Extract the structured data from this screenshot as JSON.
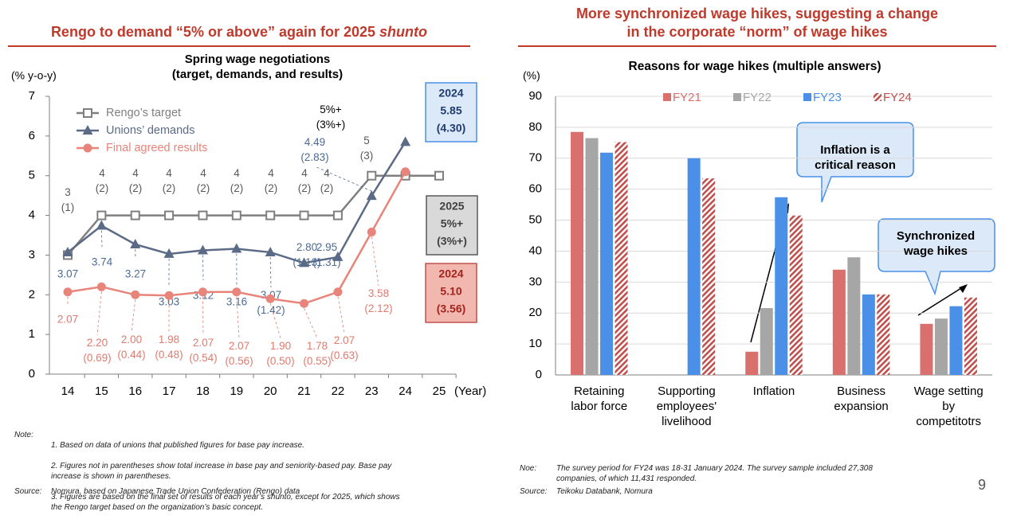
{
  "left_header": {
    "text": "Rengo to demand “5% or above” again for 2025",
    "italic": "shunto"
  },
  "right_header": "More synchronized wage hikes, suggesting a change\nin the corporate “norm” of wage hikes",
  "chart_data": [
    {
      "type": "line",
      "title": "Spring wage negotiations\n(target, demands, and results)",
      "y_label": "(% y-o-y)",
      "x_label": "(Year)",
      "categories": [
        "14",
        "15",
        "16",
        "17",
        "18",
        "19",
        "20",
        "21",
        "22",
        "23",
        "24",
        "25"
      ],
      "ylim": [
        0,
        7
      ],
      "yticks": [
        0,
        1,
        2,
        3,
        4,
        5,
        6,
        7
      ],
      "legend": "top-left",
      "series": [
        {
          "name": "Rengo’s target",
          "color": "#7f7f7f",
          "marker": "square",
          "values": [
            3,
            4,
            4,
            4,
            4,
            4,
            4,
            4,
            4,
            5,
            5,
            5
          ],
          "value_labels": [
            [
              "3",
              "(1)"
            ],
            [
              "4",
              "(2)"
            ],
            [
              "4",
              "(2)"
            ],
            [
              "4",
              "(2)"
            ],
            [
              "4",
              "(2)"
            ],
            [
              "4",
              "(2)"
            ],
            [
              "4",
              "(2)"
            ],
            [
              "4",
              "(2)"
            ],
            [
              "4",
              "(2)"
            ],
            [
              "5",
              "(3)"
            ],
            [
              "5%+",
              "(3%+)"
            ],
            [
              "2025",
              "5%+",
              "(3%+)"
            ]
          ]
        },
        {
          "name": "Unions’ demands",
          "color": "#5b6b86",
          "marker": "triangle",
          "values": [
            3.07,
            3.74,
            3.27,
            3.03,
            3.12,
            3.16,
            3.07,
            2.8,
            2.95,
            4.49,
            5.85,
            null
          ],
          "value_labels": [
            [
              "3.07"
            ],
            [
              "3.74"
            ],
            [
              "3.27"
            ],
            [
              "3.03"
            ],
            [
              "3.12"
            ],
            [
              "3.16"
            ],
            [
              "3.07",
              "(1.42)"
            ],
            [
              "2.80",
              "(1.13)"
            ],
            [
              "2.95",
              "(1.31)"
            ],
            [
              "4.49",
              "(2.83)"
            ],
            [
              "2024",
              "5.85",
              "(4.30)"
            ],
            null
          ]
        },
        {
          "name": "Final agreed results",
          "color": "#e8847a",
          "marker": "circle",
          "values": [
            2.07,
            2.2,
            2.0,
            1.98,
            2.07,
            2.07,
            1.9,
            1.78,
            2.07,
            3.58,
            5.1,
            null
          ],
          "value_labels": [
            [
              "2.07"
            ],
            [
              "2.20",
              "(0.69)"
            ],
            [
              "2.00",
              "(0.44)"
            ],
            [
              "1.98",
              "(0.48)"
            ],
            [
              "2.07",
              "(0.54)"
            ],
            [
              "2.07",
              "(0.56)"
            ],
            [
              "1.90",
              "(0.50)"
            ],
            [
              "1.78",
              "(0.55)"
            ],
            [
              "2.07",
              "(0.63)"
            ],
            [
              "3.58",
              "(2.12)"
            ],
            [
              "2024",
              "5.10",
              "(3.56)"
            ],
            null
          ]
        }
      ]
    },
    {
      "type": "bar",
      "title": "Reasons for wage hikes (multiple answers)",
      "y_label": "(%)",
      "categories": [
        "Retaining\nlabor force",
        "Supporting\nemployees'\nlivelihood",
        "Inflation",
        "Business\nexpansion",
        "Wage setting\nby\ncompetitotrs"
      ],
      "ylim": [
        0,
        90
      ],
      "yticks": [
        0,
        10,
        20,
        30,
        40,
        50,
        60,
        70,
        80,
        90
      ],
      "grid": true,
      "legend": "top",
      "series": [
        {
          "name": "FY21",
          "color": "#d9706e",
          "values": [
            78.5,
            null,
            7.5,
            34,
            16.5
          ]
        },
        {
          "name": "FY22",
          "color": "#a6a6a6",
          "values": [
            76.5,
            null,
            21.6,
            38,
            18.2
          ]
        },
        {
          "name": "FY23",
          "color": "#4a90e8",
          "values": [
            71.8,
            70,
            57.4,
            26,
            22.2
          ]
        },
        {
          "name": "FY24",
          "color": "#c0504d",
          "hatched": true,
          "values": [
            75.2,
            63.5,
            51.5,
            26,
            25
          ]
        }
      ],
      "annotations": [
        "Inflation is a\ncritical reason",
        "Synchronized\nwage hikes"
      ]
    }
  ],
  "left_note": {
    "label": "Note:",
    "lines": [
      "1. Based on data of unions that published figures for base pay increase.",
      "2. Figures not in parentheses show total increase in base pay and seniority-based pay. Base pay\nincrease is shown in parentheses.",
      "3. Figures are based on the final set of results of each year’s shunto, except for 2025, which shows\nthe Rengo target based on the organization’s basic concept."
    ]
  },
  "left_source": {
    "label": "Source:",
    "text": "Nomura, based on Japanese Trade Union Confederation (Rengo) data"
  },
  "right_note": {
    "label": "Noe:",
    "text": "The survey period for FY24 was 18-31 January 2024. The survey sample included 27,308\ncompanies, of which 11,431 responded."
  },
  "right_source": {
    "label": "Source:",
    "text": "Teikoku Databank, Nomura"
  },
  "page_number": "9"
}
